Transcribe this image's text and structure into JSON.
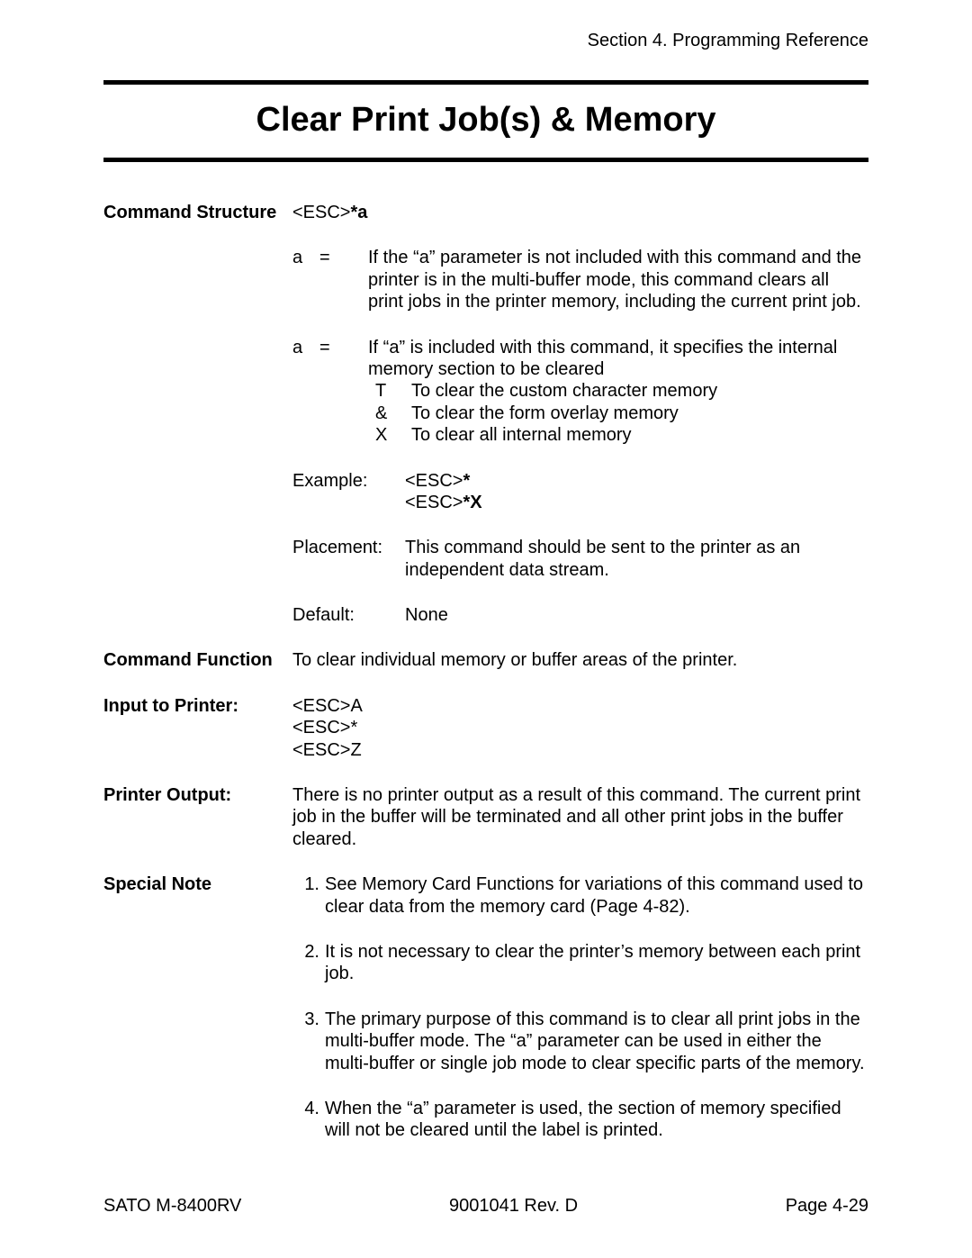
{
  "header": {
    "section_line": "Section 4. Programming Reference"
  },
  "title": "Clear Print Job(s) & Memory",
  "labels": {
    "command_structure": "Command Structure",
    "command_function": "Command Function",
    "input_to_printer": "Input to Printer:",
    "printer_output": "Printer Output:",
    "special_note": "Special Note",
    "example": "Example:",
    "placement": "Placement:",
    "default": "Default:"
  },
  "command_structure": {
    "syntax_prefix": "<ESC>",
    "syntax_suffix": "*a",
    "params": [
      {
        "name": "a",
        "eq": "=",
        "desc": "If the “a” parameter is not included with this command and the printer is in the multi-buffer mode, this command clears all print jobs in the printer memory, including the current print job."
      },
      {
        "name": "a",
        "eq": "=",
        "desc": "If “a” is included with this command, it specifies the internal memory section to be cleared",
        "sublist": [
          {
            "key": "T",
            "val": "To clear the custom character memory"
          },
          {
            "key": "&",
            "val": "To clear the form overlay memory"
          },
          {
            "key": "X",
            "val": "To clear all internal memory"
          }
        ]
      }
    ],
    "example": {
      "line1_prefix": "<ESC>",
      "line1_suffix": "*",
      "line2_prefix": "<ESC>",
      "line2_suffix": "*X"
    },
    "placement": "This command should be sent to the printer as an independent data stream.",
    "default": "None"
  },
  "command_function": "To clear individual memory or buffer areas of the printer.",
  "input_to_printer": [
    "<ESC>A",
    "<ESC>*",
    "<ESC>Z"
  ],
  "printer_output": "There is no printer output as a result of this command. The current print job in the buffer will be terminated and all other print jobs in the buffer cleared.",
  "special_notes": [
    "See Memory Card Functions for variations of this command used to clear data from the memory card (Page 4-82).",
    "It is not necessary to clear the printer’s memory between each print job.",
    "The primary purpose of this command is to clear all print jobs in the multi-buffer mode. The “a” parameter can be used in either the multi-buffer or single job mode to clear specific parts of the memory.",
    "When the “a” parameter is used, the section of memory specified will not be cleared until the label is printed."
  ],
  "footer": {
    "left": "SATO M-8400RV",
    "center": "9001041 Rev. D",
    "right": "Page 4-29"
  }
}
